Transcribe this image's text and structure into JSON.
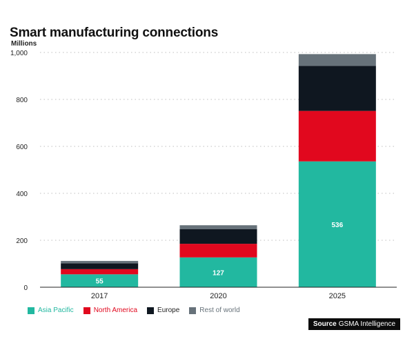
{
  "title": "Smart manufacturing connections",
  "subtitle": "Millions",
  "source": {
    "label": "Source",
    "text": "GSMA Intelligence"
  },
  "colors": {
    "asia_pacific": "#22b8a0",
    "north_america": "#e1081e",
    "europe": "#0f1720",
    "rest_of_world": "#67727a",
    "grid": "#bdbdbd",
    "axis": "#222222"
  },
  "legend": [
    {
      "name": "Asia Pacific",
      "color": "#22b8a0",
      "text_color": "#22b8a0"
    },
    {
      "name": "North America",
      "color": "#e1081e",
      "text_color": "#e1081e"
    },
    {
      "name": "Europe",
      "color": "#0f1720",
      "text_color": "#222222"
    },
    {
      "name": "Rest of world",
      "color": "#67727a",
      "text_color": "#67727a"
    }
  ],
  "chart_data": {
    "type": "bar",
    "stacked": true,
    "title": "Smart manufacturing connections",
    "ylabel": "Millions",
    "xlabel": "",
    "ylim": [
      0,
      1000
    ],
    "yticks": [
      0,
      200,
      400,
      600,
      800,
      1000
    ],
    "ytick_labels": [
      "0",
      "200",
      "400",
      "600",
      "800",
      "1,000"
    ],
    "grid": true,
    "legend_position": "bottom-left",
    "categories": [
      "2017",
      "2020",
      "2025"
    ],
    "series": [
      {
        "name": "Asia Pacific",
        "values": [
          55,
          127,
          536
        ],
        "labels": [
          "55",
          "127",
          "536"
        ]
      },
      {
        "name": "North America",
        "values": [
          22,
          58,
          215
        ]
      },
      {
        "name": "Europe",
        "values": [
          25,
          62,
          192
        ]
      },
      {
        "name": "Rest of world",
        "values": [
          10,
          17,
          50
        ]
      }
    ]
  }
}
